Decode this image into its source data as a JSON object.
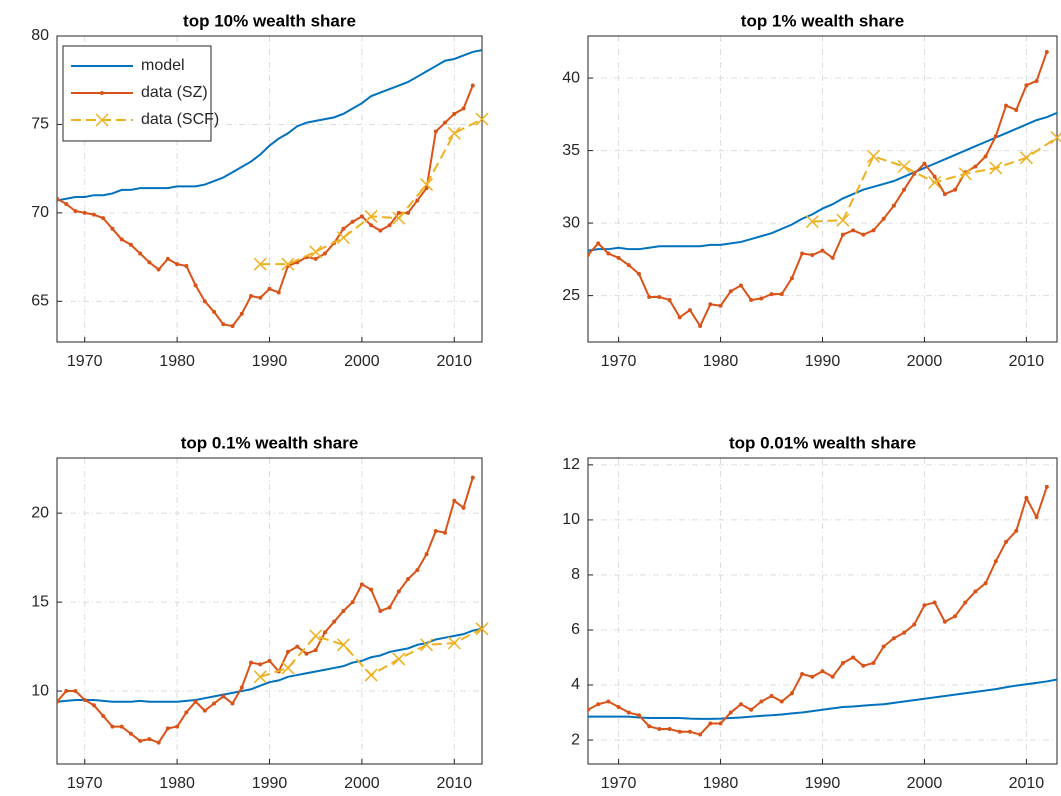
{
  "chart_data": [
    {
      "type": "line",
      "title": "top 10% wealth share",
      "xlim": [
        1967,
        2013
      ],
      "ylim": [
        62.7,
        80
      ],
      "xticks": [
        1970,
        1980,
        1990,
        2000,
        2010
      ],
      "yticks": [
        65,
        70,
        75,
        80
      ],
      "grid": true,
      "legend": "upper left",
      "series": [
        {
          "name": "model",
          "color": "#0072bd",
          "x": [
            1967,
            1968,
            1969,
            1970,
            1971,
            1972,
            1973,
            1974,
            1975,
            1976,
            1977,
            1978,
            1979,
            1980,
            1981,
            1982,
            1983,
            1984,
            1985,
            1986,
            1987,
            1988,
            1989,
            1990,
            1991,
            1992,
            1993,
            1994,
            1995,
            1996,
            1997,
            1998,
            1999,
            2000,
            2001,
            2002,
            2003,
            2004,
            2005,
            2006,
            2007,
            2008,
            2009,
            2010,
            2011,
            2012,
            2013
          ],
          "values": [
            70.7,
            70.8,
            70.9,
            70.9,
            71.0,
            71.0,
            71.1,
            71.3,
            71.3,
            71.4,
            71.4,
            71.4,
            71.4,
            71.5,
            71.5,
            71.5,
            71.6,
            71.8,
            72.0,
            72.3,
            72.6,
            72.9,
            73.3,
            73.8,
            74.2,
            74.5,
            74.9,
            75.1,
            75.2,
            75.3,
            75.4,
            75.6,
            75.9,
            76.2,
            76.6,
            76.8,
            77.0,
            77.2,
            77.4,
            77.7,
            78.0,
            78.3,
            78.6,
            78.7,
            78.9,
            79.1,
            79.2
          ]
        },
        {
          "name": "data (SZ)",
          "color": "#d95319",
          "marker": "dot",
          "x": [
            1967,
            1968,
            1969,
            1970,
            1971,
            1972,
            1973,
            1974,
            1975,
            1976,
            1977,
            1978,
            1979,
            1980,
            1981,
            1982,
            1983,
            1984,
            1985,
            1986,
            1987,
            1988,
            1989,
            1990,
            1991,
            1992,
            1993,
            1994,
            1995,
            1996,
            1997,
            1998,
            1999,
            2000,
            2001,
            2002,
            2003,
            2004,
            2005,
            2006,
            2007,
            2008,
            2009,
            2010,
            2011,
            2012
          ],
          "values": [
            70.8,
            70.5,
            70.1,
            70.0,
            69.9,
            69.7,
            69.1,
            68.5,
            68.2,
            67.7,
            67.2,
            66.8,
            67.4,
            67.1,
            67.0,
            65.9,
            65.0,
            64.4,
            63.7,
            63.6,
            64.3,
            65.3,
            65.2,
            65.7,
            65.5,
            67.0,
            67.2,
            67.5,
            67.4,
            67.7,
            68.3,
            69.1,
            69.5,
            69.8,
            69.3,
            69.0,
            69.3,
            70.0,
            70.0,
            70.7,
            71.4,
            74.6,
            75.1,
            75.6,
            75.9,
            77.2
          ]
        },
        {
          "name": "data (SCF)",
          "color": "#edb120",
          "marker": "x",
          "dashed": true,
          "x": [
            1989,
            1992,
            1995,
            1998,
            2001,
            2004,
            2007,
            2010,
            2013
          ],
          "values": [
            67.1,
            67.1,
            67.8,
            68.6,
            69.8,
            69.7,
            71.6,
            74.5,
            75.3
          ]
        }
      ]
    },
    {
      "type": "line",
      "title": "top 1% wealth share",
      "xlim": [
        1967,
        2013
      ],
      "ylim": [
        21.8,
        42.9
      ],
      "xticks": [
        1970,
        1980,
        1990,
        2000,
        2010
      ],
      "yticks": [
        25,
        30,
        35,
        40
      ],
      "grid": true,
      "series": [
        {
          "color": "#0072bd",
          "x": [
            1967,
            1968,
            1969,
            1970,
            1971,
            1972,
            1973,
            1974,
            1975,
            1976,
            1977,
            1978,
            1979,
            1980,
            1981,
            1982,
            1983,
            1984,
            1985,
            1986,
            1987,
            1988,
            1989,
            1990,
            1991,
            1992,
            1993,
            1994,
            1995,
            1996,
            1997,
            1998,
            1999,
            2000,
            2001,
            2002,
            2003,
            2004,
            2005,
            2006,
            2007,
            2008,
            2009,
            2010,
            2011,
            2012,
            2013
          ],
          "values": [
            28.1,
            28.2,
            28.2,
            28.3,
            28.2,
            28.2,
            28.3,
            28.4,
            28.4,
            28.4,
            28.4,
            28.4,
            28.5,
            28.5,
            28.6,
            28.7,
            28.9,
            29.1,
            29.3,
            29.6,
            29.9,
            30.3,
            30.6,
            31.0,
            31.3,
            31.7,
            32.0,
            32.3,
            32.5,
            32.7,
            32.9,
            33.2,
            33.5,
            33.8,
            34.1,
            34.4,
            34.7,
            35.0,
            35.3,
            35.6,
            35.9,
            36.2,
            36.5,
            36.8,
            37.1,
            37.3,
            37.6
          ]
        },
        {
          "color": "#d95319",
          "marker": "dot",
          "x": [
            1967,
            1968,
            1969,
            1970,
            1971,
            1972,
            1973,
            1974,
            1975,
            1976,
            1977,
            1978,
            1979,
            1980,
            1981,
            1982,
            1983,
            1984,
            1985,
            1986,
            1987,
            1988,
            1989,
            1990,
            1991,
            1992,
            1993,
            1994,
            1995,
            1996,
            1997,
            1998,
            1999,
            2000,
            2001,
            2002,
            2003,
            2004,
            2005,
            2006,
            2007,
            2008,
            2009,
            2010,
            2011,
            2012
          ],
          "values": [
            27.8,
            28.6,
            27.9,
            27.6,
            27.1,
            26.5,
            24.9,
            24.9,
            24.7,
            23.5,
            24.0,
            22.9,
            24.4,
            24.3,
            25.3,
            25.7,
            24.7,
            24.8,
            25.1,
            25.1,
            26.2,
            27.9,
            27.8,
            28.1,
            27.6,
            29.2,
            29.5,
            29.2,
            29.5,
            30.3,
            31.2,
            32.3,
            33.4,
            34.1,
            33.2,
            32.0,
            32.3,
            33.5,
            33.9,
            34.6,
            36.0,
            38.1,
            37.8,
            39.5,
            39.8,
            41.8
          ]
        },
        {
          "color": "#edb120",
          "marker": "x",
          "dashed": true,
          "x": [
            1989,
            1992,
            1995,
            1998,
            2001,
            2004,
            2007,
            2010,
            2013
          ],
          "values": [
            30.1,
            30.2,
            34.6,
            33.9,
            32.8,
            33.4,
            33.8,
            34.5,
            35.9
          ]
        }
      ]
    },
    {
      "type": "line",
      "title": "top 0.1% wealth share",
      "xlim": [
        1967,
        2013
      ],
      "ylim": [
        5.9,
        23.1
      ],
      "xticks": [
        1970,
        1980,
        1990,
        2000,
        2010
      ],
      "yticks": [
        10,
        15,
        20
      ],
      "grid": true,
      "series": [
        {
          "color": "#0072bd",
          "x": [
            1967,
            1968,
            1969,
            1970,
            1971,
            1972,
            1973,
            1974,
            1975,
            1976,
            1977,
            1978,
            1979,
            1980,
            1981,
            1982,
            1983,
            1984,
            1985,
            1986,
            1987,
            1988,
            1989,
            1990,
            1991,
            1992,
            1993,
            1994,
            1995,
            1996,
            1997,
            1998,
            1999,
            2000,
            2001,
            2002,
            2003,
            2004,
            2005,
            2006,
            2007,
            2008,
            2009,
            2010,
            2011,
            2012,
            2013
          ],
          "values": [
            9.4,
            9.45,
            9.5,
            9.5,
            9.5,
            9.45,
            9.4,
            9.4,
            9.4,
            9.45,
            9.4,
            9.4,
            9.4,
            9.4,
            9.45,
            9.5,
            9.6,
            9.7,
            9.8,
            9.9,
            10.0,
            10.1,
            10.3,
            10.5,
            10.6,
            10.8,
            10.9,
            11.0,
            11.1,
            11.2,
            11.3,
            11.4,
            11.6,
            11.7,
            11.9,
            12.0,
            12.2,
            12.3,
            12.4,
            12.6,
            12.7,
            12.9,
            13.0,
            13.1,
            13.2,
            13.4,
            13.5
          ]
        },
        {
          "color": "#d95319",
          "marker": "dot",
          "x": [
            1967,
            1968,
            1969,
            1970,
            1971,
            1972,
            1973,
            1974,
            1975,
            1976,
            1977,
            1978,
            1979,
            1980,
            1981,
            1982,
            1983,
            1984,
            1985,
            1986,
            1987,
            1988,
            1989,
            1990,
            1991,
            1992,
            1993,
            1994,
            1995,
            1996,
            1997,
            1998,
            1999,
            2000,
            2001,
            2002,
            2003,
            2004,
            2005,
            2006,
            2007,
            2008,
            2009,
            2010,
            2011,
            2012
          ],
          "values": [
            9.4,
            10.0,
            10.0,
            9.5,
            9.2,
            8.6,
            8.0,
            8.0,
            7.6,
            7.2,
            7.3,
            7.1,
            7.9,
            8.0,
            8.8,
            9.4,
            8.9,
            9.3,
            9.7,
            9.3,
            10.2,
            11.6,
            11.5,
            11.7,
            11.1,
            12.2,
            12.5,
            12.1,
            12.3,
            13.3,
            13.9,
            14.5,
            15.0,
            16.0,
            15.7,
            14.5,
            14.7,
            15.6,
            16.3,
            16.8,
            17.7,
            19.0,
            18.9,
            20.7,
            20.3,
            22.0
          ]
        },
        {
          "color": "#edb120",
          "marker": "x",
          "dashed": true,
          "x": [
            1989,
            1992,
            1995,
            1998,
            2001,
            2004,
            2007,
            2010,
            2013
          ],
          "values": [
            10.8,
            11.3,
            13.1,
            12.6,
            10.9,
            11.8,
            12.6,
            12.7,
            13.5
          ]
        }
      ]
    },
    {
      "type": "line",
      "title": "top 0.01% wealth share",
      "xlim": [
        1967,
        2013
      ],
      "ylim": [
        1.13,
        12.25
      ],
      "xticks": [
        1970,
        1980,
        1990,
        2000,
        2010
      ],
      "yticks": [
        2,
        4,
        6,
        8,
        10,
        12
      ],
      "grid": true,
      "series": [
        {
          "color": "#0072bd",
          "x": [
            1967,
            1968,
            1969,
            1970,
            1971,
            1972,
            1973,
            1974,
            1975,
            1976,
            1977,
            1978,
            1979,
            1980,
            1981,
            1982,
            1983,
            1984,
            1985,
            1986,
            1987,
            1988,
            1989,
            1990,
            1991,
            1992,
            1993,
            1994,
            1995,
            1996,
            1997,
            1998,
            1999,
            2000,
            2001,
            2002,
            2003,
            2004,
            2005,
            2006,
            2007,
            2008,
            2009,
            2010,
            2011,
            2012,
            2013
          ],
          "values": [
            2.85,
            2.85,
            2.85,
            2.85,
            2.85,
            2.82,
            2.8,
            2.8,
            2.8,
            2.8,
            2.78,
            2.77,
            2.77,
            2.78,
            2.8,
            2.82,
            2.85,
            2.88,
            2.9,
            2.93,
            2.97,
            3.0,
            3.05,
            3.1,
            3.15,
            3.2,
            3.22,
            3.25,
            3.28,
            3.3,
            3.35,
            3.4,
            3.45,
            3.5,
            3.55,
            3.6,
            3.65,
            3.7,
            3.75,
            3.8,
            3.85,
            3.92,
            3.98,
            4.03,
            4.08,
            4.13,
            4.2
          ]
        },
        {
          "color": "#d95319",
          "marker": "dot",
          "x": [
            1967,
            1968,
            1969,
            1970,
            1971,
            1972,
            1973,
            1974,
            1975,
            1976,
            1977,
            1978,
            1979,
            1980,
            1981,
            1982,
            1983,
            1984,
            1985,
            1986,
            1987,
            1988,
            1989,
            1990,
            1991,
            1992,
            1993,
            1994,
            1995,
            1996,
            1997,
            1998,
            1999,
            2000,
            2001,
            2002,
            2003,
            2004,
            2005,
            2006,
            2007,
            2008,
            2009,
            2010,
            2011,
            2012
          ],
          "values": [
            3.1,
            3.3,
            3.4,
            3.2,
            3.0,
            2.9,
            2.5,
            2.4,
            2.4,
            2.3,
            2.3,
            2.2,
            2.6,
            2.6,
            3.0,
            3.3,
            3.1,
            3.4,
            3.6,
            3.4,
            3.7,
            4.4,
            4.3,
            4.5,
            4.3,
            4.8,
            5.0,
            4.7,
            4.8,
            5.4,
            5.7,
            5.9,
            6.2,
            6.9,
            7.0,
            6.3,
            6.5,
            7.0,
            7.4,
            7.7,
            8.5,
            9.2,
            9.6,
            10.8,
            10.1,
            11.2
          ]
        }
      ]
    }
  ]
}
